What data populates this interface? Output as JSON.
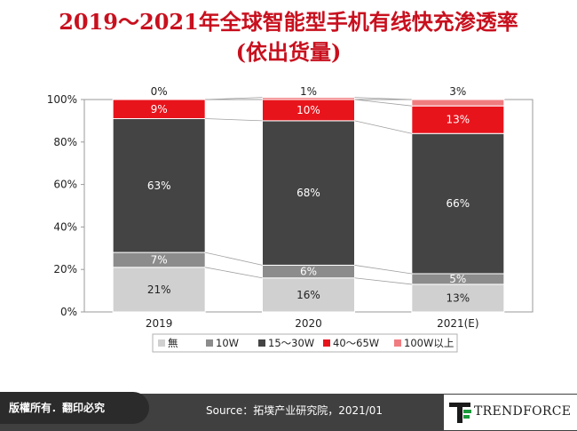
{
  "title_line1": "2019～2021年全球智能型手机有线快充渗透率",
  "title_line2": "(依出货量)",
  "footer": {
    "copyright": "版權所有．翻印必究",
    "source": "Source：拓墣产业研究院，2021/01",
    "brand": "TRENDFORCE"
  },
  "colors": {
    "title": "#c8101e",
    "none": "#d0d0d0",
    "10W": "#8c8c8c",
    "15-30W": "#444444",
    "40-65W": "#e8141c",
    "100W": "#f07c80"
  },
  "chart_data": {
    "type": "bar",
    "stacked": true,
    "categories": [
      "2019",
      "2020",
      "2021(E)"
    ],
    "ylim": [
      0,
      100
    ],
    "yticks": [
      "0%",
      "20%",
      "40%",
      "60%",
      "80%",
      "100%"
    ],
    "legend_position": "bottom",
    "series": [
      {
        "name": "無",
        "values": [
          21,
          16,
          13
        ],
        "labels": [
          "21%",
          "16%",
          "13%"
        ],
        "color": "#d0d0d0"
      },
      {
        "name": "10W",
        "values": [
          7,
          6,
          5
        ],
        "labels": [
          "7%",
          "6%",
          "5%"
        ],
        "color": "#8c8c8c"
      },
      {
        "name": "15～30W",
        "values": [
          63,
          68,
          66
        ],
        "labels": [
          "63%",
          "68%",
          "66%"
        ],
        "color": "#444444"
      },
      {
        "name": "40～65W",
        "values": [
          9,
          10,
          13
        ],
        "labels": [
          "9%",
          "10%",
          "13%"
        ],
        "color": "#e8141c"
      },
      {
        "name": "100W以上",
        "values": [
          0,
          1,
          3
        ],
        "labels": [
          "0%",
          "1%",
          "3%"
        ],
        "color": "#f07c80"
      }
    ]
  }
}
